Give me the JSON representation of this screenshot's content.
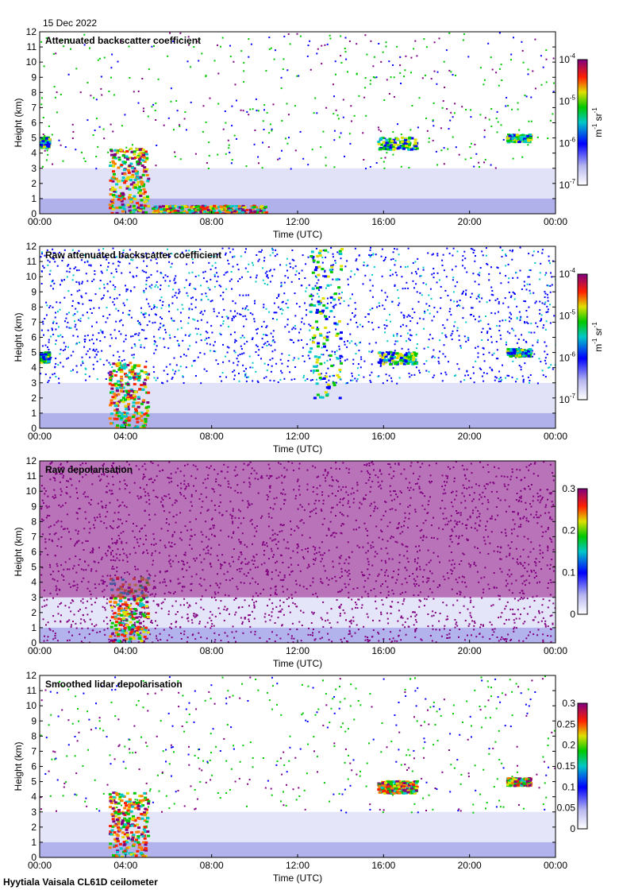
{
  "date": "15 Dec 2022",
  "footer": "Hyytiala Vaisala CL61D ceilometer",
  "chart_data": [
    {
      "type": "heatmap",
      "title": "Attenuated backscatter coefficient",
      "xlabel": "Time (UTC)",
      "ylabel": "Height (km)",
      "x_ticks": [
        "00:00",
        "04:00",
        "08:00",
        "12:00",
        "16:00",
        "20:00",
        "00:00"
      ],
      "y_ticks": [
        0,
        1,
        2,
        3,
        4,
        5,
        6,
        7,
        8,
        9,
        10,
        11,
        12
      ],
      "ylim": [
        0,
        12
      ],
      "xlim_hours": [
        0,
        24
      ],
      "colorbar": {
        "scale": "log",
        "range": [
          1e-07,
          0.0001
        ],
        "tick_labels": [
          [
            "10",
            "-7"
          ],
          [
            "10",
            "-6"
          ],
          [
            "10",
            "-5"
          ],
          [
            "10",
            "-4"
          ]
        ],
        "label": [
          "m",
          "-1",
          " sr",
          "-1"
        ]
      },
      "features": [
        {
          "hours": [
            3.2,
            5.0
          ],
          "height_km": [
            0.1,
            4.4
          ],
          "level": "high"
        },
        {
          "hours": [
            5.2,
            10.5
          ],
          "height_km": [
            0.05,
            0.6
          ],
          "level": "high"
        },
        {
          "hours": [
            0.0,
            0.4
          ],
          "height_km": [
            4.4,
            5.1
          ],
          "level": "mid"
        },
        {
          "hours": [
            15.7,
            17.5
          ],
          "height_km": [
            4.3,
            5.1
          ],
          "level": "mid"
        },
        {
          "hours": [
            21.7,
            22.8
          ],
          "height_km": [
            4.8,
            5.3
          ],
          "level": "mid"
        }
      ]
    },
    {
      "type": "heatmap",
      "title": "Raw attenuated backscatter coefficient",
      "xlabel": "Time (UTC)",
      "ylabel": "Height (km)",
      "x_ticks": [
        "00:00",
        "04:00",
        "08:00",
        "12:00",
        "16:00",
        "20:00",
        "00:00"
      ],
      "y_ticks": [
        0,
        1,
        2,
        3,
        4,
        5,
        6,
        7,
        8,
        9,
        10,
        11,
        12
      ],
      "ylim": [
        0,
        12
      ],
      "xlim_hours": [
        0,
        24
      ],
      "colorbar": {
        "scale": "log",
        "range": [
          1e-07,
          0.0001
        ],
        "tick_labels": [
          [
            "10",
            "-7"
          ],
          [
            "10",
            "-6"
          ],
          [
            "10",
            "-5"
          ],
          [
            "10",
            "-4"
          ]
        ],
        "label": [
          "m",
          "-1",
          " sr",
          "-1"
        ]
      },
      "features": [
        {
          "hours": [
            3.2,
            5.0
          ],
          "height_km": [
            0.1,
            4.4
          ],
          "level": "high"
        },
        {
          "hours": [
            12.5,
            14.0
          ],
          "height_km": [
            2.0,
            12.0
          ],
          "level": "mid"
        },
        {
          "hours": [
            0.0,
            0.4
          ],
          "height_km": [
            4.4,
            5.1
          ],
          "level": "mid"
        },
        {
          "hours": [
            15.7,
            17.5
          ],
          "height_km": [
            4.3,
            5.1
          ],
          "level": "mid"
        },
        {
          "hours": [
            21.7,
            22.8
          ],
          "height_km": [
            4.8,
            5.3
          ],
          "level": "mid"
        }
      ]
    },
    {
      "type": "heatmap",
      "title": "Raw depolarisation",
      "xlabel": "Time (UTC)",
      "ylabel": "Height (km)",
      "x_ticks": [
        "00:00",
        "04:00",
        "08:00",
        "12:00",
        "16:00",
        "20:00",
        "00:00"
      ],
      "y_ticks": [
        0,
        1,
        2,
        3,
        4,
        5,
        6,
        7,
        8,
        9,
        10,
        11,
        12
      ],
      "ylim": [
        0,
        12
      ],
      "xlim_hours": [
        0,
        24
      ],
      "colorbar": {
        "scale": "linear",
        "range": [
          0,
          0.3
        ],
        "tick_labels": [
          [
            "0",
            ""
          ],
          [
            "0.1",
            ""
          ],
          [
            "0.2",
            ""
          ],
          [
            "0.3",
            ""
          ]
        ],
        "label": []
      },
      "features": [
        {
          "hours": [
            3.2,
            5.0
          ],
          "height_km": [
            0.1,
            4.4
          ],
          "level": "high"
        },
        {
          "hours": [
            0.0,
            24.0
          ],
          "height_km": [
            3.0,
            12.0
          ],
          "level": "noise"
        }
      ]
    },
    {
      "type": "heatmap",
      "title": "Smoothed lidar depolarisation",
      "xlabel": "Time (UTC)",
      "ylabel": "Height (km)",
      "x_ticks": [
        "00:00",
        "04:00",
        "08:00",
        "12:00",
        "16:00",
        "20:00",
        "00:00"
      ],
      "y_ticks": [
        0,
        1,
        2,
        3,
        4,
        5,
        6,
        7,
        8,
        9,
        10,
        11,
        12
      ],
      "ylim": [
        0,
        12
      ],
      "xlim_hours": [
        0,
        24
      ],
      "colorbar": {
        "scale": "linear",
        "range": [
          0,
          0.3
        ],
        "tick_labels": [
          [
            "0",
            ""
          ],
          [
            "0.05",
            ""
          ],
          [
            "0.1",
            ""
          ],
          [
            "0.15",
            ""
          ],
          [
            "0.2",
            ""
          ],
          [
            "0.25",
            ""
          ],
          [
            "0.3",
            ""
          ]
        ],
        "label": []
      },
      "features": [
        {
          "hours": [
            3.2,
            5.0
          ],
          "height_km": [
            0.1,
            4.4
          ],
          "level": "high"
        },
        {
          "hours": [
            15.7,
            17.5
          ],
          "height_km": [
            4.3,
            5.1
          ],
          "level": "high"
        },
        {
          "hours": [
            21.7,
            22.8
          ],
          "height_km": [
            4.8,
            5.3
          ],
          "level": "high"
        }
      ]
    }
  ]
}
